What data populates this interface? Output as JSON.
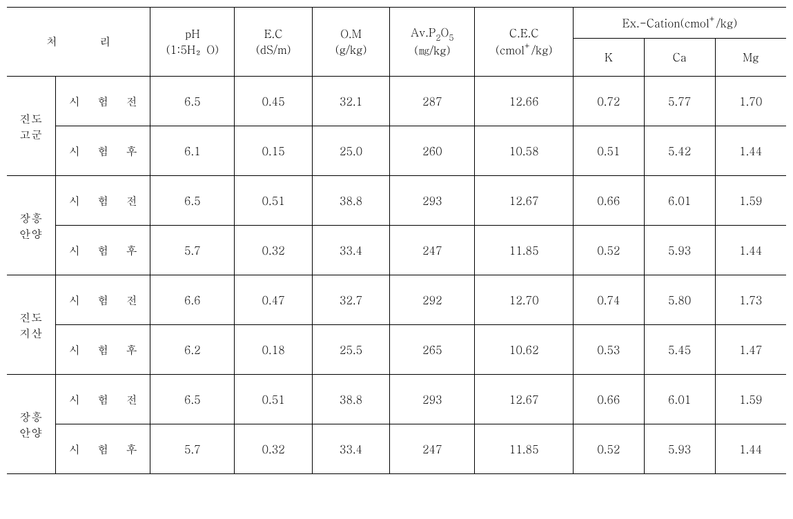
{
  "table": {
    "font_family": "Batang, serif",
    "font_size_pt": 16,
    "background_color": "#ffffff",
    "border_color": "#000000",
    "header": {
      "treatment_label": "처 리",
      "ph": {
        "label": "pH",
        "unit": "(1:5H₂O)"
      },
      "ec": {
        "label": "E.C",
        "unit": "(dS/m)"
      },
      "om": {
        "label": "O.M",
        "unit": "(g/kg)"
      },
      "avp": {
        "label_prefix": "Av.P",
        "label_sub": "2",
        "label_mid": "O",
        "label_sub2": "5",
        "unit": "(㎎/kg)"
      },
      "cec": {
        "label": "C.E.C",
        "unit_prefix": "(cmol",
        "unit_sup": "+",
        "unit_suffix": "/kg)"
      },
      "excation": {
        "label_prefix": "Ex.-Cation(cmol",
        "label_sup": "+",
        "label_suffix": "/kg)",
        "k": "K",
        "ca": "Ca",
        "mg": "Mg"
      }
    },
    "groups": [
      {
        "site": "진도\n고군",
        "rows": [
          {
            "phase": "시 험 전",
            "ph": "6.5",
            "ec": "0.45",
            "om": "32.1",
            "avp": "287",
            "cec": "12.66",
            "k": "0.72",
            "ca": "5.77",
            "mg": "1.70"
          },
          {
            "phase": "시 험 후",
            "ph": "6.1",
            "ec": "0.15",
            "om": "25.0",
            "avp": "260",
            "cec": "10.58",
            "k": "0.51",
            "ca": "5.42",
            "mg": "1.44"
          }
        ]
      },
      {
        "site": "장흥\n안양",
        "rows": [
          {
            "phase": "시 험 전",
            "ph": "6.5",
            "ec": "0.51",
            "om": "38.8",
            "avp": "293",
            "cec": "12.67",
            "k": "0.66",
            "ca": "6.01",
            "mg": "1.59"
          },
          {
            "phase": "시 험 후",
            "ph": "5.7",
            "ec": "0.32",
            "om": "33.4",
            "avp": "247",
            "cec": "11.85",
            "k": "0.52",
            "ca": "5.93",
            "mg": "1.44"
          }
        ]
      },
      {
        "site": "진도\n지산",
        "rows": [
          {
            "phase": "시 험 전",
            "ph": "6.6",
            "ec": "0.47",
            "om": "32.7",
            "avp": "292",
            "cec": "12.70",
            "k": "0.74",
            "ca": "5.80",
            "mg": "1.73"
          },
          {
            "phase": "시 험 후",
            "ph": "6.2",
            "ec": "0.18",
            "om": "25.5",
            "avp": "265",
            "cec": "10.62",
            "k": "0.53",
            "ca": "5.45",
            "mg": "1.47"
          }
        ]
      },
      {
        "site": "장흥\n안양",
        "rows": [
          {
            "phase": "시 험 전",
            "ph": "6.5",
            "ec": "0.51",
            "om": "38.8",
            "avp": "293",
            "cec": "12.67",
            "k": "0.66",
            "ca": "6.01",
            "mg": "1.59"
          },
          {
            "phase": "시 험 후",
            "ph": "5.7",
            "ec": "0.32",
            "om": "33.4",
            "avp": "247",
            "cec": "11.85",
            "k": "0.52",
            "ca": "5.93",
            "mg": "1.44"
          }
        ]
      }
    ]
  }
}
